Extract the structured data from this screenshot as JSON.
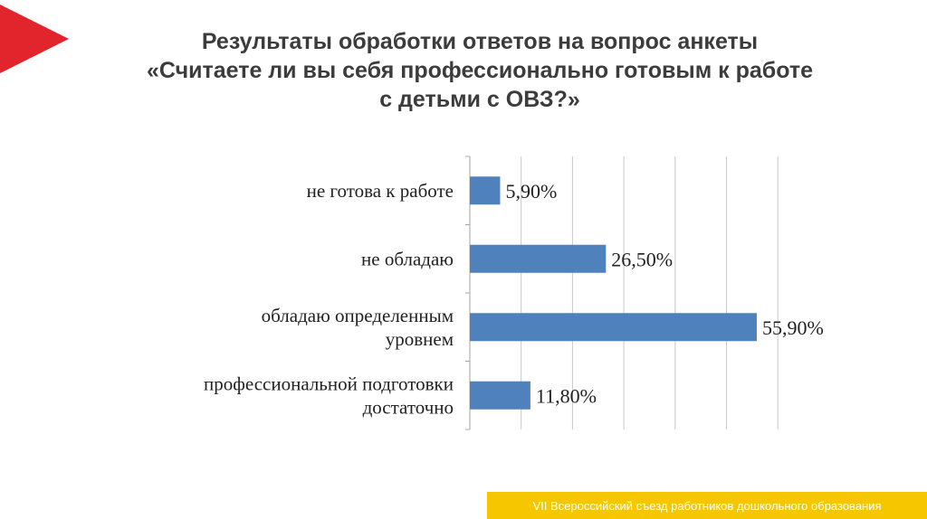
{
  "title": {
    "line1": "Результаты обработки ответов на вопрос анкеты",
    "line2": "«Считаете ли вы себя профессионально готовым к работе",
    "line3": "с детьми с ОВЗ?»"
  },
  "footer": {
    "text": "VII Всероссийский съезд работников дошкольного образования"
  },
  "colors": {
    "bar": "#4f81bd",
    "accent_red": "#e2242c",
    "footer_yellow": "#f6c700"
  },
  "chart_data": {
    "type": "bar",
    "orientation": "horizontal",
    "categories": [
      [
        "не готова к работе"
      ],
      [
        "не обладаю"
      ],
      [
        "обладаю определенным",
        "уровнем"
      ],
      [
        "профессиональной подготовки",
        "достаточно"
      ]
    ],
    "values": [
      5.9,
      26.5,
      55.9,
      11.8
    ],
    "value_labels": [
      "5,90%",
      "26,50%",
      "55,90%",
      "11,80%"
    ],
    "xlim": [
      0,
      60
    ],
    "grid": true
  }
}
